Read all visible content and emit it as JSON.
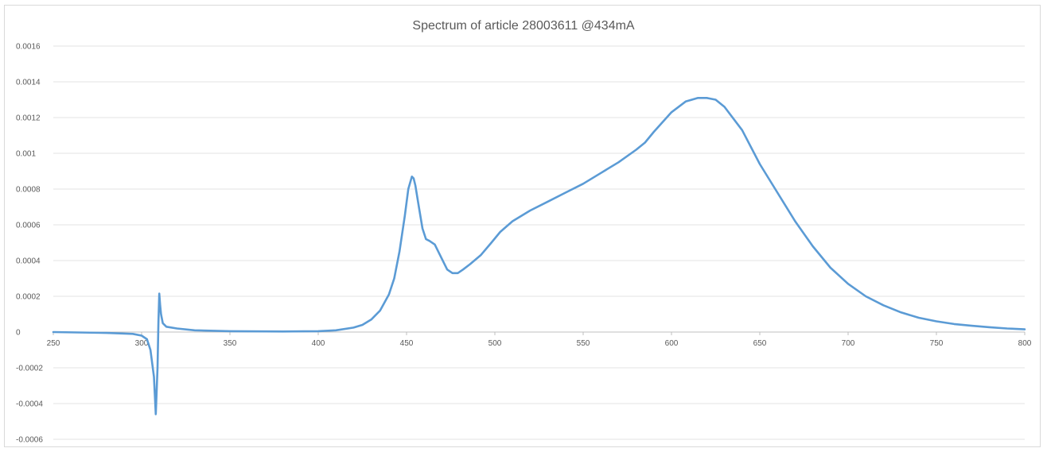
{
  "chart_data": {
    "type": "line",
    "title": "Spectrum of article 28003611   @434mA",
    "xlabel": "",
    "ylabel": "",
    "xlim": [
      250,
      800
    ],
    "ylim": [
      -0.0006,
      0.0016
    ],
    "x_ticks": [
      250,
      300,
      350,
      400,
      450,
      500,
      550,
      600,
      650,
      700,
      750,
      800
    ],
    "y_ticks": [
      {
        "value": 0.0016,
        "label": "0.0016"
      },
      {
        "value": 0.0014,
        "label": "0.0014"
      },
      {
        "value": 0.0012,
        "label": "0.0012"
      },
      {
        "value": 0.001,
        "label": "0.001"
      },
      {
        "value": 0.0008,
        "label": "0.0008"
      },
      {
        "value": 0.0006,
        "label": "0.0006"
      },
      {
        "value": 0.0004,
        "label": "0.0004"
      },
      {
        "value": 0.0002,
        "label": "0.0002"
      },
      {
        "value": 0,
        "label": "0"
      },
      {
        "value": -0.0002,
        "label": "-0.0002"
      },
      {
        "value": -0.0004,
        "label": "-0.0004"
      },
      {
        "value": -0.0006,
        "label": "-0.0006"
      }
    ],
    "grid": true,
    "legend": "none",
    "series_color": "#5b9bd5",
    "series": [
      {
        "x": [
          250,
          280,
          295,
          300,
          303,
          305,
          307,
          308,
          309,
          309.5,
          310,
          310.5,
          311,
          312,
          314,
          320,
          330,
          350,
          380,
          400,
          410,
          420,
          425,
          430,
          435,
          440,
          443,
          446,
          449,
          451,
          453,
          454,
          455,
          457,
          459,
          461,
          463,
          466,
          470,
          473,
          476,
          479,
          482,
          486,
          492,
          498,
          503,
          510,
          520,
          530,
          540,
          550,
          560,
          570,
          580,
          585,
          590,
          600,
          608,
          615,
          620,
          625,
          630,
          640,
          650,
          660,
          670,
          680,
          690,
          700,
          710,
          720,
          730,
          740,
          750,
          760,
          770,
          780,
          790,
          800
        ],
        "y": [
          0,
          -5e-06,
          -1e-05,
          -2e-05,
          -4e-05,
          -0.0001,
          -0.00025,
          -0.00046,
          -0.0002,
          5e-05,
          0.000215,
          0.00015,
          0.0001,
          5e-05,
          3e-05,
          2e-05,
          1e-05,
          5e-06,
          3e-06,
          5e-06,
          1e-05,
          2.5e-05,
          4e-05,
          7e-05,
          0.00012,
          0.00021,
          0.0003,
          0.00045,
          0.00065,
          0.0008,
          0.00087,
          0.00086,
          0.00082,
          0.0007,
          0.00058,
          0.00052,
          0.00051,
          0.00049,
          0.00041,
          0.00035,
          0.00033,
          0.00033,
          0.00035,
          0.00038,
          0.00043,
          0.0005,
          0.00056,
          0.00062,
          0.00068,
          0.00073,
          0.00078,
          0.00083,
          0.00089,
          0.00095,
          0.00102,
          0.00106,
          0.00112,
          0.00123,
          0.00129,
          0.00131,
          0.00131,
          0.0013,
          0.00126,
          0.00113,
          0.00094,
          0.00078,
          0.00062,
          0.00048,
          0.00036,
          0.00027,
          0.0002,
          0.00015,
          0.00011,
          8e-05,
          6e-05,
          4.5e-05,
          3.5e-05,
          2.7e-05,
          2e-05,
          1.5e-05
        ]
      }
    ]
  }
}
